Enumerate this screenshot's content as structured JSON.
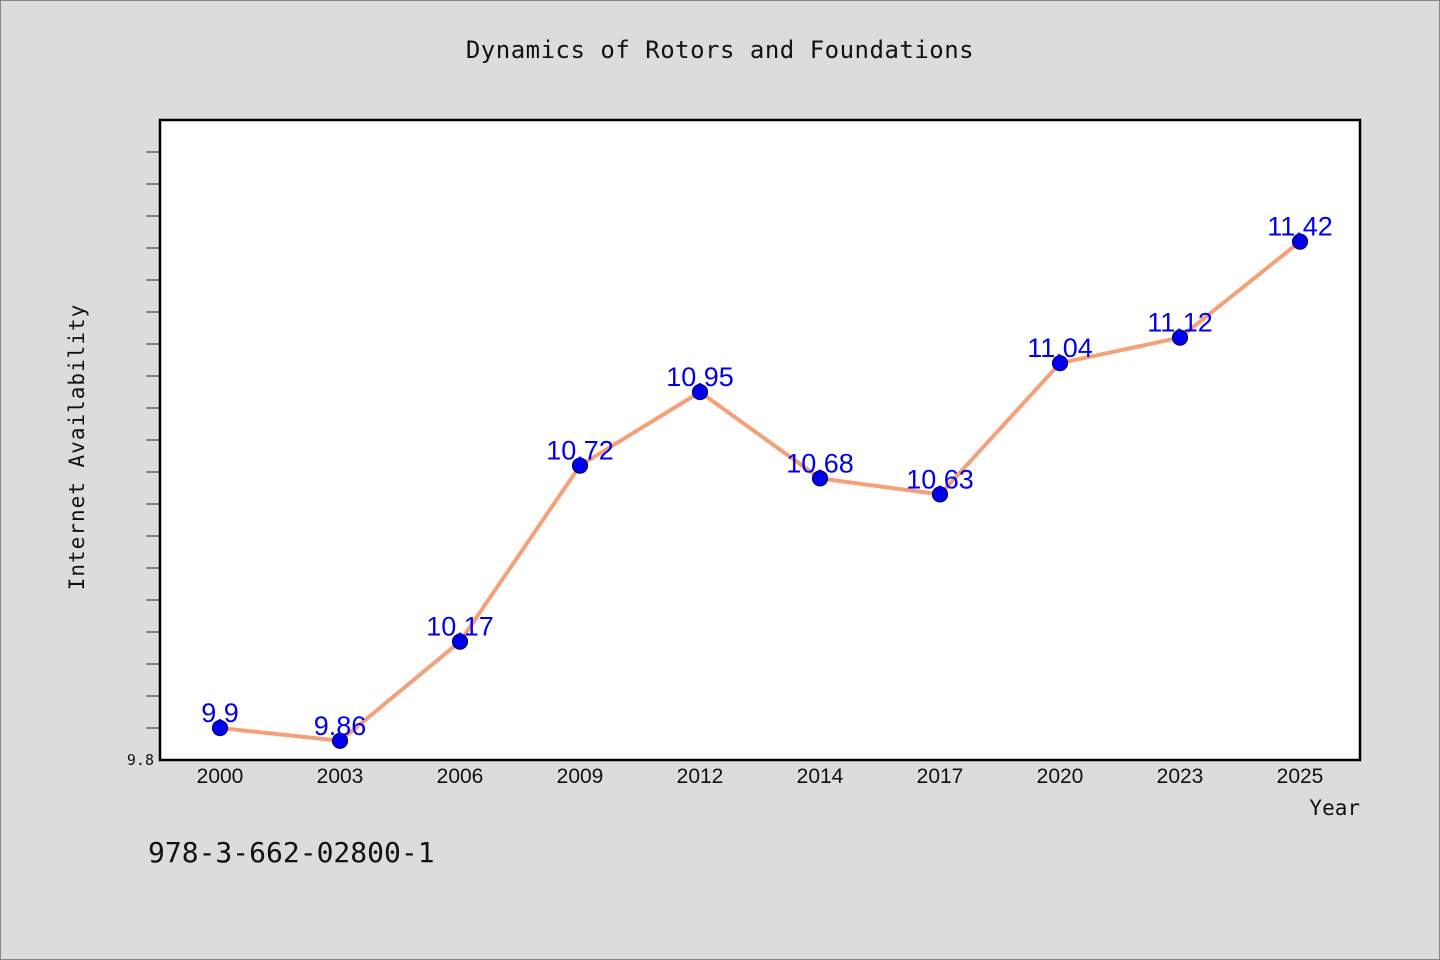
{
  "chart_data": {
    "type": "line",
    "title": "Dynamics of Rotors and Foundations",
    "xlabel": "Year",
    "ylabel": "Internet Availability",
    "categories": [
      "2000",
      "2003",
      "2006",
      "2009",
      "2012",
      "2014",
      "2017",
      "2020",
      "2023",
      "2025"
    ],
    "series": [
      {
        "values": [
          9.9,
          9.86,
          10.17,
          10.72,
          10.95,
          10.68,
          10.63,
          11.04,
          11.12,
          11.42
        ],
        "labels": [
          "9.9",
          "9.86",
          "10.17",
          "10.72",
          "10.95",
          "10.68",
          "10.63",
          "11.04",
          "11.12",
          "11.42"
        ]
      }
    ],
    "ylim": [
      9.8,
      11.8
    ],
    "yticklabels_shown": [
      "9.8"
    ],
    "ytick_step": 0.1,
    "grid": false,
    "legend": "none",
    "colors": {
      "line": "#f4a07a",
      "marker": "#0000ee",
      "data_label": "#0000ee",
      "plot_background": "#ffffff",
      "figure_background": "#dcdcdc"
    }
  },
  "footnote": "978-3-662-02800-1"
}
